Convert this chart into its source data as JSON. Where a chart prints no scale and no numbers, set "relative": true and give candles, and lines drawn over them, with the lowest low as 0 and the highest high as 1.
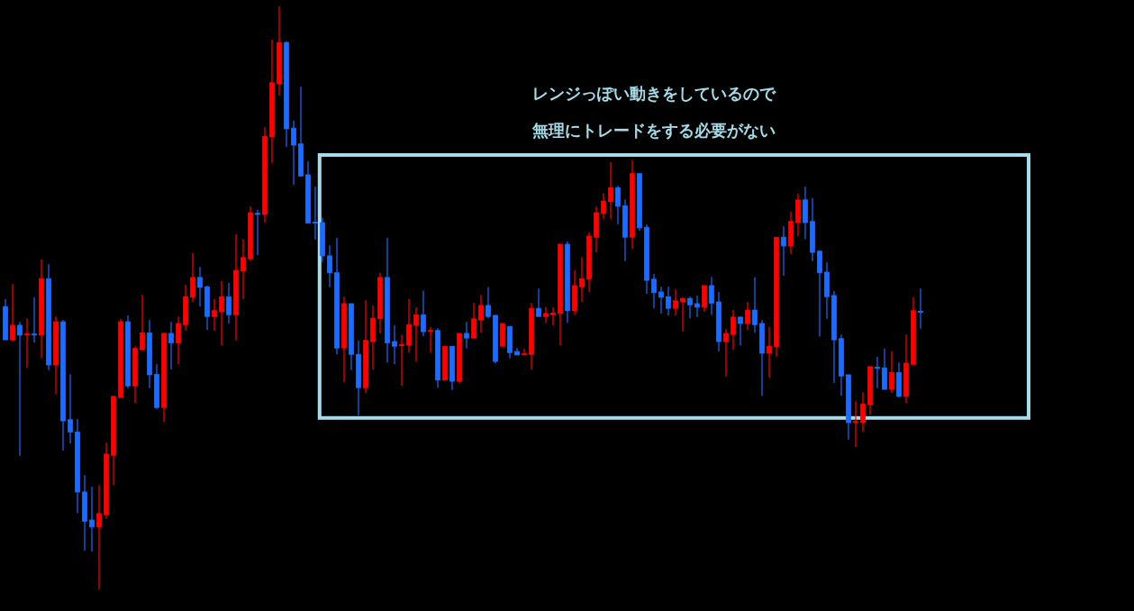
{
  "chart_data": {
    "type": "candlestick",
    "relative": true,
    "annotations": [
      "レンジっぽい動きをしているので",
      "無理にトレードをする必要がない"
    ],
    "categories": [
      null,
      null,
      null,
      null,
      null,
      null,
      null,
      null,
      null,
      null,
      null,
      null,
      null,
      null,
      null,
      null,
      null,
      null,
      null,
      null,
      null,
      null,
      null,
      null,
      null,
      null,
      null,
      null,
      null,
      null,
      null,
      null,
      null,
      null,
      null,
      null,
      null,
      null,
      null,
      null,
      null,
      null,
      null,
      null,
      null,
      null,
      null,
      null,
      null,
      null,
      null,
      null,
      null,
      null,
      null,
      null,
      null,
      null,
      null,
      null,
      null,
      null,
      null,
      null,
      null,
      null,
      null,
      null,
      null,
      null,
      null,
      null,
      null,
      null,
      null,
      null,
      null,
      null,
      null,
      null,
      null,
      null,
      null,
      null,
      null,
      null,
      null,
      null,
      null,
      null,
      null,
      null,
      null,
      null,
      null,
      null,
      null,
      null,
      null,
      null,
      null,
      null,
      null,
      null,
      null,
      null,
      null,
      null,
      null,
      null,
      null,
      null,
      null,
      null,
      null,
      null,
      null,
      null,
      null,
      null,
      null,
      null,
      null,
      null,
      null,
      null,
      null,
      null
    ],
    "ohlc": [
      [
        0.485,
        0.498,
        0.428,
        0.428
      ],
      [
        0.428,
        0.524,
        0.425,
        0.453
      ],
      [
        0.453,
        0.459,
        0.229,
        0.436
      ],
      [
        0.437,
        0.465,
        0.38,
        0.438
      ],
      [
        0.438,
        0.501,
        0.423,
        0.437
      ],
      [
        0.436,
        0.566,
        0.397,
        0.533
      ],
      [
        0.533,
        0.558,
        0.376,
        0.385
      ],
      [
        0.385,
        0.468,
        0.335,
        0.459
      ],
      [
        0.459,
        0.462,
        0.238,
        0.289
      ],
      [
        0.291,
        0.369,
        0.25,
        0.27
      ],
      [
        0.27,
        0.292,
        0.131,
        0.167
      ],
      [
        0.167,
        0.196,
        0.066,
        0.117
      ],
      [
        0.119,
        0.176,
        0.065,
        0.107
      ],
      [
        0.107,
        0.179,
        0,
        0.13
      ],
      [
        0.128,
        0.252,
        0.121,
        0.232
      ],
      [
        0.23,
        0.332,
        0.179,
        0.331
      ],
      [
        0.329,
        0.464,
        0.329,
        0.459
      ],
      [
        0.459,
        0.47,
        0.345,
        0.349
      ],
      [
        0.349,
        0.417,
        0.32,
        0.413
      ],
      [
        0.411,
        0.505,
        0.41,
        0.44
      ],
      [
        0.44,
        0.462,
        0.345,
        0.368
      ],
      [
        0.369,
        0.386,
        0.309,
        0.312
      ],
      [
        0.312,
        0.44,
        0.287,
        0.439
      ],
      [
        0.439,
        0.459,
        0.377,
        0.423
      ],
      [
        0.423,
        0.468,
        0.386,
        0.456
      ],
      [
        0.454,
        0.522,
        0.444,
        0.502
      ],
      [
        0.501,
        0.577,
        0.493,
        0.535
      ],
      [
        0.535,
        0.553,
        0.485,
        0.518
      ],
      [
        0.519,
        0.521,
        0.445,
        0.468
      ],
      [
        0.468,
        0.498,
        0.444,
        0.478
      ],
      [
        0.476,
        0.529,
        0.419,
        0.502
      ],
      [
        0.502,
        0.526,
        0.456,
        0.471
      ],
      [
        0.471,
        0.609,
        0.427,
        0.547
      ],
      [
        0.546,
        0.601,
        0.498,
        0.569
      ],
      [
        0.567,
        0.657,
        0.563,
        0.646
      ],
      [
        0.645,
        0.651,
        0.573,
        0.644
      ],
      [
        0.643,
        0.793,
        0.629,
        0.777
      ],
      [
        0.776,
        0.943,
        0.731,
        0.869
      ],
      [
        0.867,
        1,
        0.847,
        0.938
      ],
      [
        0.938,
        0.94,
        0.759,
        0.79
      ],
      [
        0.791,
        0.804,
        0.694,
        0.762
      ],
      [
        0.764,
        0.862,
        0.708,
        0.709
      ],
      [
        0.711,
        0.734,
        0.628,
        0.628
      ],
      [
        0.63,
        0.691,
        0.6,
        0.628
      ],
      [
        0.629,
        0.637,
        0.561,
        0.572
      ],
      [
        0.572,
        0.59,
        0.518,
        0.543
      ],
      [
        0.543,
        0.603,
        0.403,
        0.414
      ],
      [
        0.414,
        0.502,
        0.355,
        0.49
      ],
      [
        0.49,
        0.49,
        0.376,
        0.403
      ],
      [
        0.403,
        0.427,
        0.298,
        0.346
      ],
      [
        0.346,
        0.496,
        0.337,
        0.427
      ],
      [
        0.425,
        0.487,
        0.377,
        0.465
      ],
      [
        0.464,
        0.543,
        0.439,
        0.535
      ],
      [
        0.535,
        0.603,
        0.389,
        0.423
      ],
      [
        0.425,
        0.453,
        0.386,
        0.417
      ],
      [
        0.418,
        0.437,
        0.349,
        0.42
      ],
      [
        0.419,
        0.498,
        0.406,
        0.454
      ],
      [
        0.453,
        0.484,
        0.391,
        0.471
      ],
      [
        0.471,
        0.512,
        0.434,
        0.442
      ],
      [
        0.443,
        0.45,
        0.406,
        0.444
      ],
      [
        0.444,
        0.448,
        0.346,
        0.359
      ],
      [
        0.359,
        0.417,
        0.359,
        0.417
      ],
      [
        0.417,
        0.417,
        0.342,
        0.357
      ],
      [
        0.357,
        0.439,
        0.354,
        0.439
      ],
      [
        0.439,
        0.459,
        0.413,
        0.431
      ],
      [
        0.431,
        0.491,
        0.43,
        0.464
      ],
      [
        0.462,
        0.505,
        0.44,
        0.487
      ],
      [
        0.487,
        0.518,
        0.465,
        0.468
      ],
      [
        0.47,
        0.47,
        0.388,
        0.391
      ],
      [
        0.417,
        0.456,
        0.417,
        0.456
      ],
      [
        0.451,
        0.451,
        0.396,
        0.406
      ],
      [
        0.408,
        0.414,
        0.402,
        0.402
      ],
      [
        0.403,
        0.413,
        0.402,
        0.404
      ],
      [
        0.403,
        0.491,
        0.377,
        0.482
      ],
      [
        0.482,
        0.516,
        0.468,
        0.468
      ],
      [
        0.468,
        0.484,
        0.457,
        0.473
      ],
      [
        0.471,
        0.484,
        0.453,
        0.474
      ],
      [
        0.473,
        0.592,
        0.419,
        0.592
      ],
      [
        0.592,
        0.597,
        0.457,
        0.478
      ],
      [
        0.478,
        0.547,
        0.471,
        0.521
      ],
      [
        0.519,
        0.57,
        0.493,
        0.533
      ],
      [
        0.532,
        0.612,
        0.51,
        0.606
      ],
      [
        0.604,
        0.657,
        0.578,
        0.646
      ],
      [
        0.645,
        0.679,
        0.635,
        0.666
      ],
      [
        0.665,
        0.733,
        0.635,
        0.689
      ],
      [
        0.689,
        0.692,
        0.626,
        0.657
      ],
      [
        0.658,
        0.669,
        0.563,
        0.604
      ],
      [
        0.604,
        0.736,
        0.584,
        0.713
      ],
      [
        0.713,
        0.713,
        0.615,
        0.62
      ],
      [
        0.621,
        0.626,
        0.507,
        0.53
      ],
      [
        0.532,
        0.541,
        0.482,
        0.509
      ],
      [
        0.51,
        0.519,
        0.473,
        0.501
      ],
      [
        0.502,
        0.519,
        0.47,
        0.482
      ],
      [
        0.482,
        0.515,
        0.47,
        0.495
      ],
      [
        0.493,
        0.501,
        0.442,
        0.499
      ],
      [
        0.499,
        0.502,
        0.465,
        0.488
      ],
      [
        0.49,
        0.504,
        0.467,
        0.484
      ],
      [
        0.484,
        0.521,
        0.476,
        0.521
      ],
      [
        0.521,
        0.536,
        0.471,
        0.491
      ],
      [
        0.493,
        0.51,
        0.408,
        0.425
      ],
      [
        0.425,
        0.447,
        0.365,
        0.439
      ],
      [
        0.437,
        0.479,
        0.411,
        0.467
      ],
      [
        0.467,
        0.467,
        0.419,
        0.456
      ],
      [
        0.456,
        0.493,
        0.445,
        0.479
      ],
      [
        0.479,
        0.535,
        0.44,
        0.454
      ],
      [
        0.456,
        0.462,
        0.332,
        0.405
      ],
      [
        0.405,
        0.45,
        0.363,
        0.417
      ],
      [
        0.416,
        0.604,
        0.399,
        0.604
      ],
      [
        0.604,
        0.623,
        0.538,
        0.589
      ],
      [
        0.589,
        0.648,
        0.575,
        0.631
      ],
      [
        0.629,
        0.679,
        0.606,
        0.668
      ],
      [
        0.668,
        0.691,
        0.601,
        0.629
      ],
      [
        0.631,
        0.671,
        0.563,
        0.578
      ],
      [
        0.58,
        0.581,
        0.434,
        0.543
      ],
      [
        0.544,
        0.561,
        0.464,
        0.502
      ],
      [
        0.504,
        0.512,
        0.354,
        0.428
      ],
      [
        0.43,
        0.437,
        0.332,
        0.366
      ],
      [
        0.368,
        0.368,
        0.257,
        0.286
      ],
      [
        0.287,
        0.323,
        0.244,
        0.288
      ],
      [
        0.286,
        0.338,
        0.27,
        0.318
      ],
      [
        0.317,
        0.382,
        0.3,
        0.382
      ],
      [
        0.381,
        0.399,
        0.345,
        0.379
      ],
      [
        0.38,
        0.413,
        0.343,
        0.343
      ],
      [
        0.343,
        0.408,
        0.337,
        0.372
      ],
      [
        0.372,
        0.389,
        0.329,
        0.331
      ],
      [
        0.331,
        0.437,
        0.32,
        0.388
      ],
      [
        0.386,
        0.501,
        0.386,
        0.478
      ],
      [
        0.477,
        0.516,
        0.447,
        0.475
      ]
    ],
    "colors": [
      "#1e6bff",
      "#ff0000",
      "#1e6bff",
      "#ff0000",
      "#1e6bff",
      "#ff0000",
      "#1e6bff",
      "#ff0000",
      "#1e6bff",
      "#1e6bff",
      "#1e6bff",
      "#1e6bff",
      "#1e6bff",
      "#ff0000",
      "#ff0000",
      "#ff0000",
      "#ff0000",
      "#1e6bff",
      "#ff0000",
      "#ff0000",
      "#1e6bff",
      "#1e6bff",
      "#ff0000",
      "#1e6bff",
      "#ff0000",
      "#ff0000",
      "#ff0000",
      "#1e6bff",
      "#1e6bff",
      "#ff0000",
      "#ff0000",
      "#1e6bff",
      "#ff0000",
      "#ff0000",
      "#ff0000",
      "#1e6bff",
      "#ff0000",
      "#ff0000",
      "#ff0000",
      "#1e6bff",
      "#1e6bff",
      "#1e6bff",
      "#1e6bff",
      "#1e6bff",
      "#1e6bff",
      "#1e6bff",
      "#1e6bff",
      "#ff0000",
      "#1e6bff",
      "#1e6bff",
      "#ff0000",
      "#ff0000",
      "#ff0000",
      "#1e6bff",
      "#1e6bff",
      "#ff0000",
      "#ff0000",
      "#ff0000",
      "#1e6bff",
      "#ff0000",
      "#1e6bff",
      "#ff0000",
      "#1e6bff",
      "#ff0000",
      "#1e6bff",
      "#ff0000",
      "#ff0000",
      "#1e6bff",
      "#1e6bff",
      "#ff0000",
      "#1e6bff",
      "#1e6bff",
      "#ff0000",
      "#ff0000",
      "#1e6bff",
      "#ff0000",
      "#ff0000",
      "#ff0000",
      "#1e6bff",
      "#ff0000",
      "#ff0000",
      "#ff0000",
      "#ff0000",
      "#ff0000",
      "#ff0000",
      "#1e6bff",
      "#1e6bff",
      "#ff0000",
      "#1e6bff",
      "#1e6bff",
      "#1e6bff",
      "#1e6bff",
      "#1e6bff",
      "#ff0000",
      "#ff0000",
      "#1e6bff",
      "#1e6bff",
      "#ff0000",
      "#1e6bff",
      "#1e6bff",
      "#ff0000",
      "#ff0000",
      "#1e6bff",
      "#ff0000",
      "#1e6bff",
      "#1e6bff",
      "#ff0000",
      "#ff0000",
      "#1e6bff",
      "#ff0000",
      "#ff0000",
      "#1e6bff",
      "#1e6bff",
      "#1e6bff",
      "#1e6bff",
      "#1e6bff",
      "#1e6bff",
      "#1e6bff",
      "#ff0000",
      "#ff0000",
      "#ff0000",
      "#1e6bff",
      "#1e6bff",
      "#ff0000",
      "#1e6bff",
      "#ff0000",
      "#ff0000",
      "#1e6bff"
    ]
  }
}
